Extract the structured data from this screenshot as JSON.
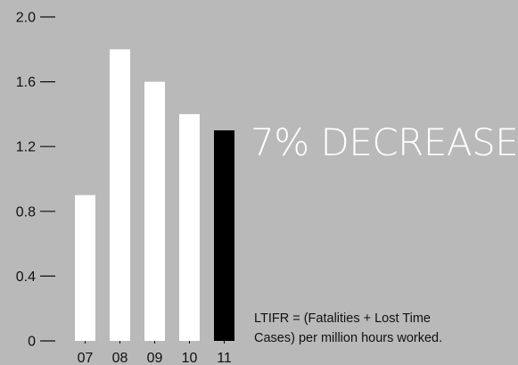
{
  "chart_data": {
    "type": "bar",
    "categories": [
      "07",
      "08",
      "09",
      "10",
      "11"
    ],
    "values": [
      0.9,
      1.8,
      1.6,
      1.4,
      1.3
    ],
    "ylim": [
      0,
      2.0
    ],
    "yticks": [
      0,
      0.4,
      0.8,
      1.2,
      1.6,
      2.0
    ],
    "ytick_labels": [
      "0",
      "0.4",
      "0.8",
      "1.2",
      "1.6",
      "2.0"
    ],
    "highlight_category": "11",
    "grid": false,
    "title": "",
    "xlabel": "",
    "ylabel": "",
    "colors": {
      "background": "#b9b9b9",
      "bar": "#ffffff",
      "highlight_bar": "#000000",
      "tick": "#111111",
      "callout_text": "#ffffff"
    }
  },
  "annotations": {
    "callout": "7% DECREASE",
    "footnote_lines": [
      "LTIFR = (Fatalities + Lost Time",
      "Cases) per million hours worked."
    ]
  }
}
